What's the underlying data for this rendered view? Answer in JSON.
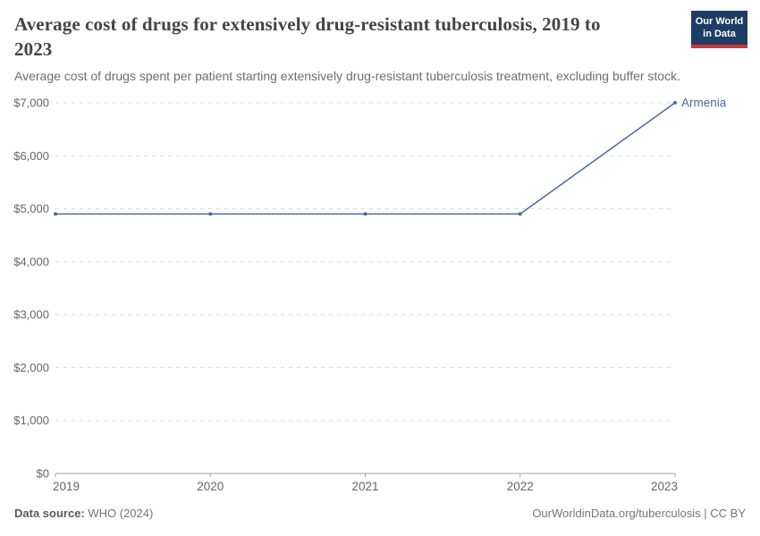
{
  "header": {
    "title": "Average cost of drugs for extensively drug-resistant tuberculosis, 2019 to 2023",
    "subtitle": "Average cost of drugs spent per patient starting extensively drug-resistant tuberculosis treatment, excluding buffer stock.",
    "logo": {
      "line1": "Our World",
      "line2": "in Data",
      "bg_color": "#1d3d63",
      "accent_color": "#c23b3f"
    }
  },
  "chart_data": {
    "type": "line",
    "title": "Average cost of drugs for extensively drug-resistant tuberculosis, 2019 to 2023",
    "subtitle": "Average cost of drugs spent per patient starting extensively drug-resistant tuberculosis treatment, excluding buffer stock.",
    "x": [
      "2019",
      "2020",
      "2021",
      "2022",
      "2023"
    ],
    "series": [
      {
        "name": "Armenia",
        "color": "#4c6a9c",
        "values": [
          4900,
          4900,
          4900,
          4900,
          7000
        ]
      }
    ],
    "xlabel": "",
    "ylabel": "",
    "ylim": [
      0,
      7000
    ],
    "yticks": [
      {
        "value": 0,
        "label": "$0"
      },
      {
        "value": 1000,
        "label": "$1,000"
      },
      {
        "value": 2000,
        "label": "$2,000"
      },
      {
        "value": 3000,
        "label": "$3,000"
      },
      {
        "value": 4000,
        "label": "$4,000"
      },
      {
        "value": 5000,
        "label": "$5,000"
      },
      {
        "value": 6000,
        "label": "$6,000"
      },
      {
        "value": 7000,
        "label": "$7,000"
      }
    ],
    "grid": "horizontal-dashed",
    "legend_position": "line-end-label"
  },
  "footer": {
    "source_label": "Data source:",
    "source_value": " WHO (2024)",
    "link": "OurWorldinData.org/tuberculosis",
    "license": " | CC BY"
  }
}
